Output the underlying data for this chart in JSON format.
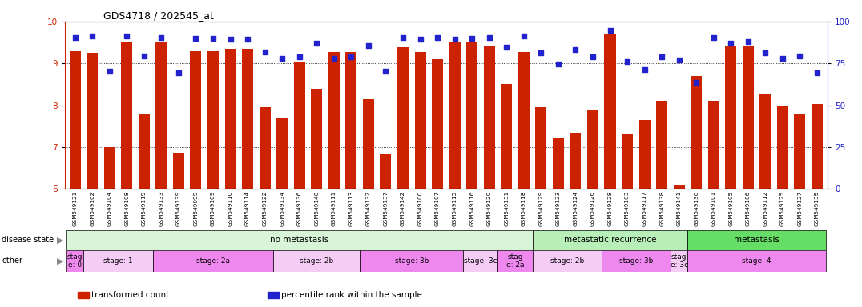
{
  "title": "GDS4718 / 202545_at",
  "samples": [
    "GSM549121",
    "GSM549102",
    "GSM549104",
    "GSM549108",
    "GSM549119",
    "GSM549133",
    "GSM549139",
    "GSM549099",
    "GSM549109",
    "GSM549110",
    "GSM549114",
    "GSM549122",
    "GSM549134",
    "GSM549136",
    "GSM549140",
    "GSM549111",
    "GSM549113",
    "GSM549132",
    "GSM549137",
    "GSM549142",
    "GSM549100",
    "GSM549107",
    "GSM549115",
    "GSM549116",
    "GSM549120",
    "GSM549131",
    "GSM549118",
    "GSM549129",
    "GSM549123",
    "GSM549124",
    "GSM549126",
    "GSM549128",
    "GSM549103",
    "GSM549117",
    "GSM549138",
    "GSM549141",
    "GSM549130",
    "GSM549101",
    "GSM549105",
    "GSM549106",
    "GSM549112",
    "GSM549125",
    "GSM549127",
    "GSM549135"
  ],
  "bar_values": [
    9.3,
    9.25,
    7.0,
    9.5,
    7.8,
    9.5,
    6.85,
    9.3,
    9.3,
    9.35,
    9.35,
    7.95,
    7.68,
    9.05,
    8.4,
    9.28,
    9.28,
    8.15,
    6.82,
    9.38,
    9.28,
    9.1,
    9.5,
    9.5,
    9.42,
    8.5,
    9.28,
    7.95,
    7.2,
    7.35,
    7.9,
    9.72,
    7.3,
    7.65,
    8.1,
    6.1,
    8.7,
    8.1,
    9.42,
    9.42,
    8.28,
    8.0,
    7.8,
    8.02
  ],
  "dot_values": [
    9.62,
    9.65,
    8.82,
    9.65,
    9.18,
    9.62,
    8.78,
    9.6,
    9.6,
    9.58,
    9.58,
    9.28,
    9.12,
    9.15,
    9.48,
    9.12,
    9.15,
    9.42,
    8.82,
    9.62,
    9.58,
    9.62,
    9.58,
    9.6,
    9.62,
    9.38,
    9.65,
    9.25,
    8.98,
    9.32,
    9.15,
    9.78,
    9.05,
    8.85,
    9.15,
    9.08,
    8.55,
    9.62,
    9.48,
    9.52,
    9.25,
    9.12,
    9.18,
    8.78
  ],
  "disease_state_groups": [
    {
      "label": "no metastasis",
      "start": 0,
      "end": 27,
      "color": "#d8f5d8"
    },
    {
      "label": "metastatic recurrence",
      "start": 27,
      "end": 36,
      "color": "#b8eeb8"
    },
    {
      "label": "metastasis",
      "start": 36,
      "end": 44,
      "color": "#66dd66"
    }
  ],
  "other_groups": [
    {
      "label": "stag\ne: 0",
      "start": 0,
      "end": 1,
      "color": "#ee88ee"
    },
    {
      "label": "stage: 1",
      "start": 1,
      "end": 5,
      "color": "#f5ccf5"
    },
    {
      "label": "stage: 2a",
      "start": 5,
      "end": 12,
      "color": "#ee88ee"
    },
    {
      "label": "stage: 2b",
      "start": 12,
      "end": 17,
      "color": "#f5ccf5"
    },
    {
      "label": "stage: 3b",
      "start": 17,
      "end": 23,
      "color": "#ee88ee"
    },
    {
      "label": "stage: 3c",
      "start": 23,
      "end": 25,
      "color": "#f5ccf5"
    },
    {
      "label": "stag\ne: 2a",
      "start": 25,
      "end": 27,
      "color": "#ee88ee"
    },
    {
      "label": "stage: 2b",
      "start": 27,
      "end": 31,
      "color": "#f5ccf5"
    },
    {
      "label": "stage: 3b",
      "start": 31,
      "end": 35,
      "color": "#ee88ee"
    },
    {
      "label": "stag\ne: 3c",
      "start": 35,
      "end": 36,
      "color": "#f5ccf5"
    },
    {
      "label": "stage: 4",
      "start": 36,
      "end": 44,
      "color": "#ee88ee"
    }
  ],
  "bar_color": "#cc2200",
  "dot_color": "#2222cc",
  "ylim_left": [
    6,
    10
  ],
  "ylim_right": [
    0,
    100
  ],
  "yticks_left": [
    6,
    7,
    8,
    9,
    10
  ],
  "yticks_right": [
    0,
    25,
    50,
    75,
    100
  ],
  "grid_values": [
    7,
    8,
    9
  ],
  "xticklabel_bg": "#d8d8d8",
  "legend_items": [
    {
      "label": "transformed count",
      "color": "#cc2200"
    },
    {
      "label": "percentile rank within the sample",
      "color": "#2222cc"
    }
  ]
}
